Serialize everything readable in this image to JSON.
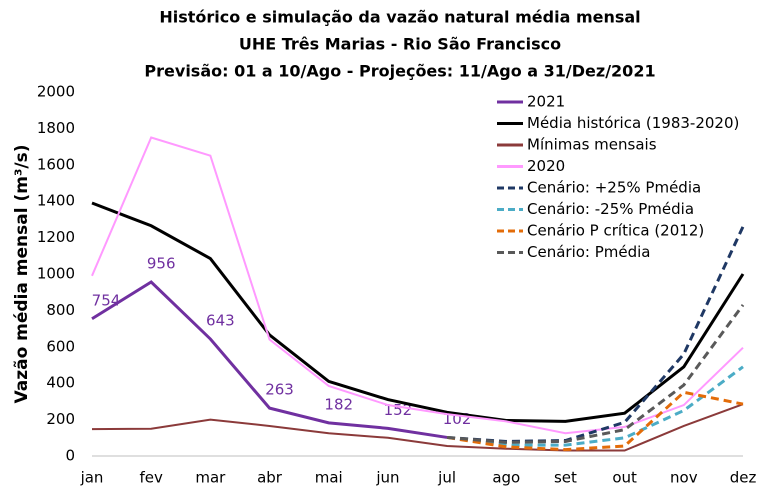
{
  "chart_data": {
    "type": "line",
    "title": [
      "Histórico e simulação da vazão natural média mensal",
      "UHE Três Marias - Rio São Francisco",
      "Previsão: 01 a 10/Ago - Projeções: 11/Ago a 31/Dez/2021"
    ],
    "y_label": "Vazão média mensal (m³/s)",
    "categories": [
      "jan",
      "fev",
      "mar",
      "abr",
      "mai",
      "jun",
      "jul",
      "ago",
      "set",
      "out",
      "nov",
      "dez"
    ],
    "ylim": [
      0,
      2000
    ],
    "yticks": [
      0,
      200,
      400,
      600,
      800,
      1000,
      1200,
      1400,
      1600,
      1800,
      2000
    ],
    "legend": "upper right",
    "series": [
      {
        "name": "2021",
        "color": "#7030a0",
        "width": 3,
        "dashed": false,
        "show_labels": true,
        "values": [
          754,
          956,
          643,
          263,
          182,
          152,
          102,
          null,
          null,
          null,
          null,
          null
        ]
      },
      {
        "name": "Média histórica (1983-2020)",
        "color": "#000000",
        "width": 3,
        "dashed": false,
        "values": [
          1390,
          1265,
          1085,
          665,
          410,
          310,
          240,
          195,
          190,
          235,
          490,
          1000
        ]
      },
      {
        "name": "Mínimas mensais",
        "color": "#8b3a3a",
        "width": 2,
        "dashed": false,
        "values": [
          148,
          150,
          200,
          165,
          125,
          100,
          55,
          40,
          30,
          30,
          165,
          285
        ]
      },
      {
        "name": "2020",
        "color": "#ff99ff",
        "width": 2,
        "dashed": false,
        "values": [
          990,
          1750,
          1650,
          640,
          385,
          280,
          230,
          190,
          125,
          160,
          280,
          595
        ]
      },
      {
        "name": "Cenário: +25% Pmédia",
        "color": "#1f3864",
        "width": 3,
        "dashed": true,
        "values": [
          null,
          null,
          null,
          null,
          null,
          null,
          102,
          80,
          85,
          185,
          560,
          1260
        ]
      },
      {
        "name": "Cenário: -25% Pmédia",
        "color": "#4bacc6",
        "width": 3,
        "dashed": true,
        "values": [
          null,
          null,
          null,
          null,
          null,
          null,
          102,
          60,
          60,
          100,
          250,
          490
        ]
      },
      {
        "name": "Cenário P crítica (2012)",
        "color": "#e36c09",
        "width": 3,
        "dashed": true,
        "values": [
          null,
          null,
          null,
          null,
          null,
          null,
          102,
          50,
          35,
          55,
          350,
          285
        ]
      },
      {
        "name": "Cenário: Pmédia",
        "color": "#595959",
        "width": 3,
        "dashed": true,
        "values": [
          null,
          null,
          null,
          null,
          null,
          null,
          102,
          75,
          80,
          145,
          390,
          830
        ]
      }
    ]
  }
}
